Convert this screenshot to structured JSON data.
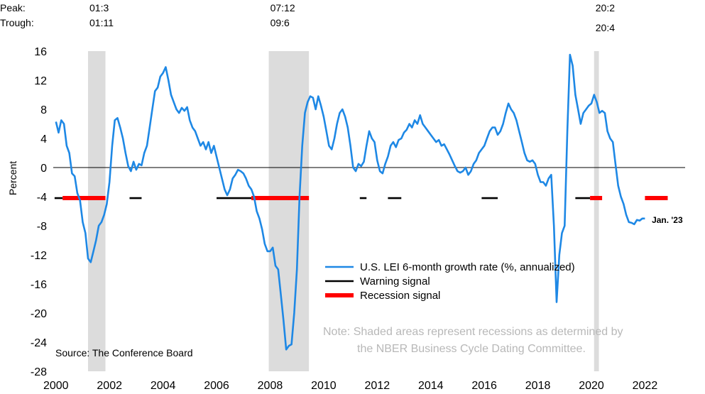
{
  "chart_data": {
    "type": "line",
    "ylabel": "Percent",
    "ylim": [
      -28,
      16
    ],
    "yticks": [
      "16",
      "12",
      "8",
      "4",
      "0",
      "-4",
      "-8",
      "-12",
      "-16",
      "-20",
      "-24",
      "-28"
    ],
    "xlim": [
      1999.9,
      2023.5
    ],
    "xticks": [
      "2000",
      "2002",
      "2004",
      "2006",
      "2008",
      "2010",
      "2012",
      "2014",
      "2016",
      "2018",
      "2020",
      "2022"
    ],
    "grid": false,
    "legend_position": "bottom-center",
    "header": {
      "peak_label": "Peak:",
      "trough_label": "Trough:",
      "recessions": [
        {
          "peak": "01:3",
          "trough": "01:11",
          "start": 2001.2,
          "end": 2001.85
        },
        {
          "peak": "07:12",
          "trough": "09:6",
          "start": 2007.95,
          "end": 2009.45
        },
        {
          "peak": "20:2",
          "trough": "20:4",
          "start": 2020.1,
          "end": 2020.28
        }
      ]
    },
    "series": [
      {
        "name": "U.S. LEI 6-month growth rate (%, annualized)",
        "color": "#1e88e5",
        "points": [
          [
            2000.0,
            6.3
          ],
          [
            2000.1,
            4.8
          ],
          [
            2000.2,
            6.5
          ],
          [
            2000.3,
            6.0
          ],
          [
            2000.4,
            3.0
          ],
          [
            2000.5,
            2.0
          ],
          [
            2000.6,
            -0.8
          ],
          [
            2000.7,
            -1.2
          ],
          [
            2000.8,
            -3.5
          ],
          [
            2000.9,
            -4.5
          ],
          [
            2001.0,
            -7.5
          ],
          [
            2001.1,
            -9.0
          ],
          [
            2001.2,
            -12.5
          ],
          [
            2001.3,
            -13.0
          ],
          [
            2001.4,
            -11.5
          ],
          [
            2001.5,
            -10.0
          ],
          [
            2001.6,
            -8.0
          ],
          [
            2001.7,
            -7.5
          ],
          [
            2001.8,
            -6.5
          ],
          [
            2001.9,
            -5.0
          ],
          [
            2002.0,
            -2.0
          ],
          [
            2002.1,
            3.0
          ],
          [
            2002.2,
            6.5
          ],
          [
            2002.3,
            6.8
          ],
          [
            2002.4,
            5.5
          ],
          [
            2002.5,
            4.0
          ],
          [
            2002.6,
            2.0
          ],
          [
            2002.7,
            0.2
          ],
          [
            2002.8,
            -0.5
          ],
          [
            2002.9,
            0.8
          ],
          [
            2003.0,
            -0.3
          ],
          [
            2003.1,
            0.5
          ],
          [
            2003.2,
            0.3
          ],
          [
            2003.3,
            2.0
          ],
          [
            2003.4,
            3.0
          ],
          [
            2003.5,
            5.5
          ],
          [
            2003.6,
            8.0
          ],
          [
            2003.7,
            10.5
          ],
          [
            2003.8,
            11.0
          ],
          [
            2003.9,
            12.5
          ],
          [
            2004.0,
            13.0
          ],
          [
            2004.1,
            13.8
          ],
          [
            2004.2,
            12.0
          ],
          [
            2004.3,
            10.0
          ],
          [
            2004.4,
            9.0
          ],
          [
            2004.5,
            8.0
          ],
          [
            2004.6,
            7.5
          ],
          [
            2004.7,
            8.2
          ],
          [
            2004.8,
            7.8
          ],
          [
            2004.9,
            8.3
          ],
          [
            2005.0,
            6.5
          ],
          [
            2005.1,
            5.5
          ],
          [
            2005.2,
            5.0
          ],
          [
            2005.3,
            4.0
          ],
          [
            2005.4,
            3.0
          ],
          [
            2005.5,
            3.5
          ],
          [
            2005.6,
            2.5
          ],
          [
            2005.7,
            3.5
          ],
          [
            2005.8,
            2.0
          ],
          [
            2005.9,
            3.0
          ],
          [
            2006.0,
            1.5
          ],
          [
            2006.1,
            0.0
          ],
          [
            2006.2,
            -1.5
          ],
          [
            2006.3,
            -3.0
          ],
          [
            2006.4,
            -3.8
          ],
          [
            2006.5,
            -3.0
          ],
          [
            2006.6,
            -1.5
          ],
          [
            2006.7,
            -1.0
          ],
          [
            2006.8,
            -0.3
          ],
          [
            2006.9,
            -0.5
          ],
          [
            2007.0,
            -0.8
          ],
          [
            2007.1,
            -1.5
          ],
          [
            2007.2,
            -2.5
          ],
          [
            2007.3,
            -3.0
          ],
          [
            2007.4,
            -4.0
          ],
          [
            2007.5,
            -6.0
          ],
          [
            2007.6,
            -7.0
          ],
          [
            2007.7,
            -8.5
          ],
          [
            2007.8,
            -10.5
          ],
          [
            2007.9,
            -11.5
          ],
          [
            2008.0,
            -11.5
          ],
          [
            2008.1,
            -11.0
          ],
          [
            2008.2,
            -13.5
          ],
          [
            2008.3,
            -14.0
          ],
          [
            2008.4,
            -17.5
          ],
          [
            2008.5,
            -21.0
          ],
          [
            2008.6,
            -25.0
          ],
          [
            2008.7,
            -24.5
          ],
          [
            2008.8,
            -24.3
          ],
          [
            2008.9,
            -20.0
          ],
          [
            2009.0,
            -14.0
          ],
          [
            2009.1,
            -4.0
          ],
          [
            2009.2,
            3.0
          ],
          [
            2009.3,
            7.5
          ],
          [
            2009.4,
            9.0
          ],
          [
            2009.5,
            9.8
          ],
          [
            2009.6,
            9.6
          ],
          [
            2009.7,
            8.0
          ],
          [
            2009.8,
            9.8
          ],
          [
            2009.9,
            8.5
          ],
          [
            2010.0,
            7.0
          ],
          [
            2010.1,
            5.0
          ],
          [
            2010.2,
            3.0
          ],
          [
            2010.3,
            2.5
          ],
          [
            2010.4,
            4.0
          ],
          [
            2010.5,
            6.0
          ],
          [
            2010.6,
            7.5
          ],
          [
            2010.7,
            8.0
          ],
          [
            2010.8,
            7.0
          ],
          [
            2010.9,
            5.5
          ],
          [
            2011.0,
            3.0
          ],
          [
            2011.1,
            0.0
          ],
          [
            2011.2,
            -0.5
          ],
          [
            2011.3,
            0.5
          ],
          [
            2011.4,
            0.2
          ],
          [
            2011.5,
            0.8
          ],
          [
            2011.6,
            3.0
          ],
          [
            2011.7,
            5.0
          ],
          [
            2011.8,
            4.0
          ],
          [
            2011.9,
            3.5
          ],
          [
            2012.0,
            1.0
          ],
          [
            2012.1,
            -0.5
          ],
          [
            2012.2,
            -0.8
          ],
          [
            2012.3,
            0.5
          ],
          [
            2012.4,
            1.5
          ],
          [
            2012.5,
            3.0
          ],
          [
            2012.6,
            3.5
          ],
          [
            2012.7,
            2.8
          ],
          [
            2012.8,
            3.8
          ],
          [
            2012.9,
            4.0
          ],
          [
            2013.0,
            4.8
          ],
          [
            2013.1,
            5.2
          ],
          [
            2013.2,
            6.0
          ],
          [
            2013.3,
            5.5
          ],
          [
            2013.4,
            6.5
          ],
          [
            2013.5,
            6.0
          ],
          [
            2013.6,
            7.2
          ],
          [
            2013.7,
            6.0
          ],
          [
            2013.8,
            5.5
          ],
          [
            2013.9,
            5.0
          ],
          [
            2014.0,
            4.5
          ],
          [
            2014.1,
            4.0
          ],
          [
            2014.2,
            3.5
          ],
          [
            2014.3,
            3.8
          ],
          [
            2014.4,
            3.0
          ],
          [
            2014.5,
            3.2
          ],
          [
            2014.6,
            2.5
          ],
          [
            2014.7,
            1.8
          ],
          [
            2014.8,
            1.0
          ],
          [
            2014.9,
            0.2
          ],
          [
            2015.0,
            -0.5
          ],
          [
            2015.1,
            -0.7
          ],
          [
            2015.2,
            -0.5
          ],
          [
            2015.3,
            0.0
          ],
          [
            2015.4,
            -1.0
          ],
          [
            2015.5,
            -0.5
          ],
          [
            2015.6,
            0.5
          ],
          [
            2015.7,
            1.0
          ],
          [
            2015.8,
            2.0
          ],
          [
            2015.9,
            2.5
          ],
          [
            2016.0,
            3.0
          ],
          [
            2016.1,
            4.0
          ],
          [
            2016.2,
            5.0
          ],
          [
            2016.3,
            5.5
          ],
          [
            2016.4,
            5.5
          ],
          [
            2016.5,
            4.5
          ],
          [
            2016.6,
            5.0
          ],
          [
            2016.7,
            6.0
          ],
          [
            2016.8,
            7.5
          ],
          [
            2016.9,
            8.8
          ],
          [
            2017.0,
            8.0
          ],
          [
            2017.1,
            7.5
          ],
          [
            2017.2,
            6.5
          ],
          [
            2017.3,
            5.0
          ],
          [
            2017.4,
            3.5
          ],
          [
            2017.5,
            2.0
          ],
          [
            2017.6,
            1.0
          ],
          [
            2017.7,
            0.8
          ],
          [
            2017.8,
            1.0
          ],
          [
            2017.9,
            0.5
          ],
          [
            2018.0,
            -1.0
          ],
          [
            2018.1,
            -2.0
          ],
          [
            2018.2,
            -2.0
          ],
          [
            2018.3,
            -2.5
          ],
          [
            2018.4,
            -1.5
          ],
          [
            2018.5,
            -1.0
          ],
          [
            2018.6,
            -8.0
          ],
          [
            2018.7,
            -18.5
          ],
          [
            2018.8,
            -12.0
          ],
          [
            2018.9,
            -9.0
          ],
          [
            2019.0,
            -8.0
          ],
          [
            2019.1,
            5.0
          ],
          [
            2019.2,
            15.5
          ],
          [
            2019.3,
            14.0
          ],
          [
            2019.4,
            10.0
          ],
          [
            2019.5,
            8.0
          ],
          [
            2019.6,
            6.0
          ],
          [
            2019.7,
            7.5
          ],
          [
            2019.8,
            8.0
          ],
          [
            2019.9,
            8.5
          ],
          [
            2020.0,
            8.8
          ],
          [
            2020.1,
            10.0
          ],
          [
            2020.2,
            9.0
          ],
          [
            2020.3,
            7.5
          ],
          [
            2020.4,
            7.8
          ],
          [
            2020.5,
            7.5
          ],
          [
            2020.6,
            5.0
          ],
          [
            2020.7,
            4.0
          ],
          [
            2020.8,
            3.5
          ],
          [
            2020.9,
            0.5
          ],
          [
            2021.0,
            -2.5
          ],
          [
            2021.1,
            -4.0
          ],
          [
            2021.2,
            -5.0
          ],
          [
            2021.3,
            -6.5
          ],
          [
            2021.4,
            -7.5
          ],
          [
            2021.5,
            -7.6
          ],
          [
            2021.6,
            -7.8
          ],
          [
            2021.7,
            -7.2
          ],
          [
            2021.8,
            -7.3
          ],
          [
            2021.9,
            -7.0
          ],
          [
            2022.0,
            -7.0
          ]
        ]
      },
      {
        "name": "Warning signal",
        "color": "#000000",
        "level": -4.2,
        "segments": [
          [
            1999.95,
            2000.25
          ],
          [
            2002.75,
            2003.2
          ],
          [
            2006.0,
            2007.3
          ],
          [
            2011.35,
            2011.6
          ],
          [
            2012.4,
            2012.9
          ],
          [
            2015.9,
            2016.5
          ],
          [
            2019.4,
            2019.95
          ]
        ]
      },
      {
        "name": "Recession signal",
        "color": "#ff0000",
        "level": -4.2,
        "segments": [
          [
            2000.25,
            2001.85
          ],
          [
            2007.3,
            2009.45
          ],
          [
            2019.95,
            2020.4
          ],
          [
            2022.0,
            2022.85
          ]
        ]
      }
    ],
    "annotations": [
      {
        "text": "Jan. '23",
        "x": 2022.15,
        "y": -7.2
      }
    ],
    "note_lines": [
      "Note: Shaded areas represent recessions as determined by",
      "the NBER Business Cycle Dating Committee."
    ],
    "source": "Source: The Conference Board"
  }
}
